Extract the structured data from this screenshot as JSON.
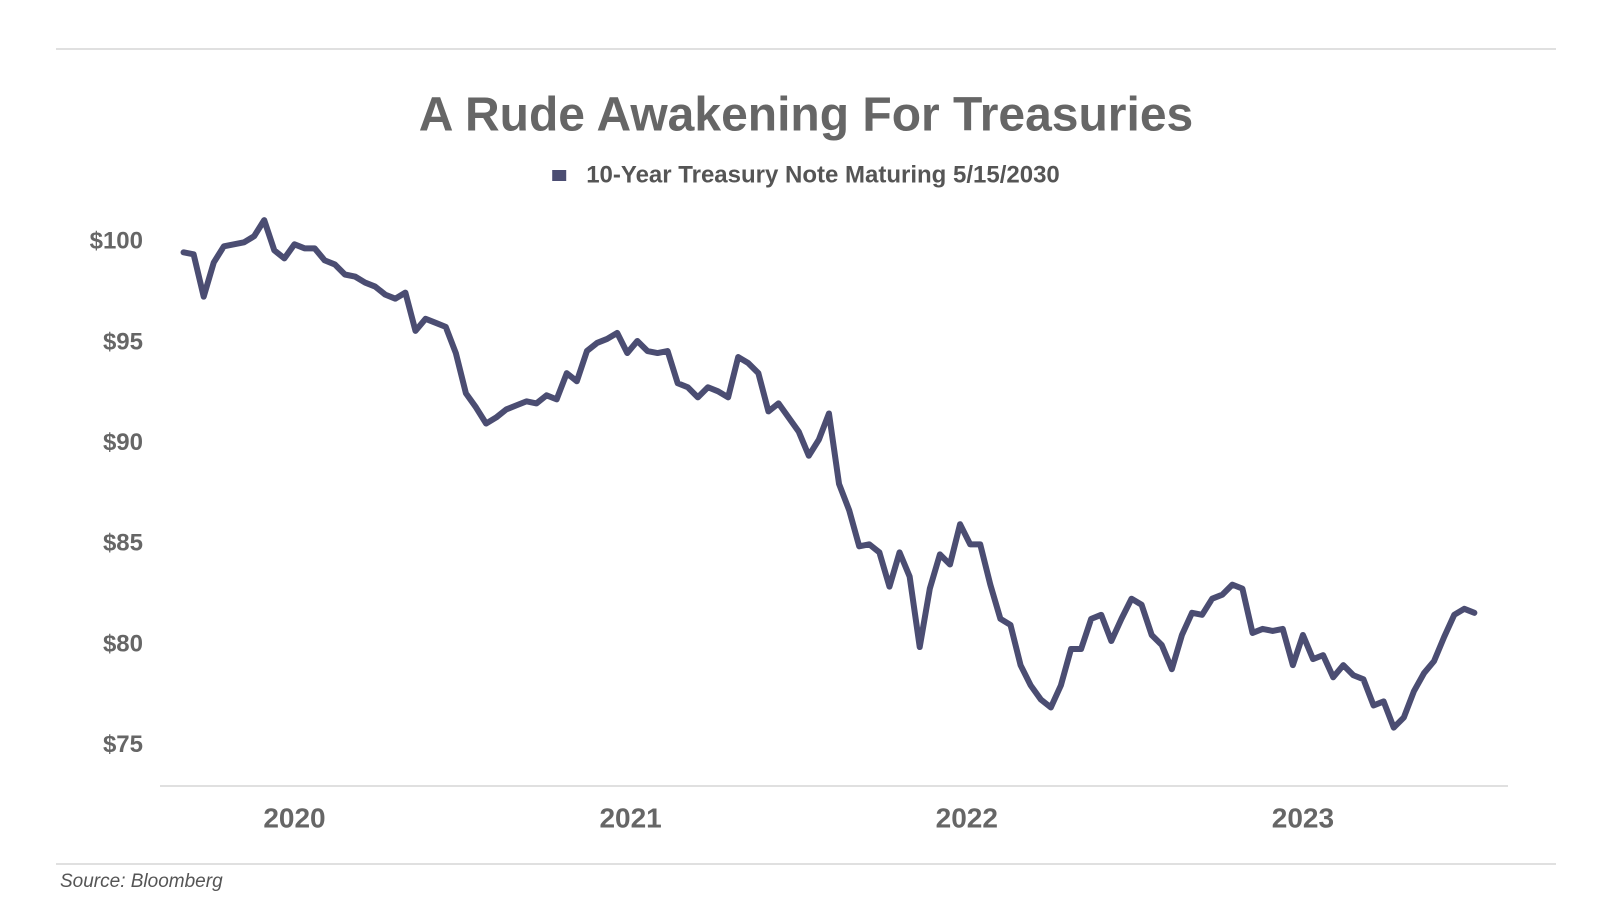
{
  "chart_data": {
    "type": "line",
    "title": "A Rude Awakening For Treasuries",
    "source": "Source: Bloomberg",
    "x": [
      2019.67,
      2019.7,
      2019.73,
      2019.76,
      2019.79,
      2019.82,
      2019.85,
      2019.88,
      2019.91,
      2019.94,
      2019.97,
      2020,
      2020.03,
      2020.06,
      2020.09,
      2020.12,
      2020.15,
      2020.18,
      2020.21,
      2020.24,
      2020.27,
      2020.3,
      2020.33,
      2020.36,
      2020.39,
      2020.42,
      2020.45,
      2020.48,
      2020.51,
      2020.54,
      2020.57,
      2020.6,
      2020.63,
      2020.66,
      2020.69,
      2020.72,
      2020.75,
      2020.78,
      2020.81,
      2020.84,
      2020.87,
      2020.9,
      2020.93,
      2020.96,
      2020.99,
      2021.02,
      2021.05,
      2021.08,
      2021.11,
      2021.14,
      2021.17,
      2021.2,
      2021.23,
      2021.26,
      2021.29,
      2021.32,
      2021.35,
      2021.38,
      2021.41,
      2021.44,
      2021.47,
      2021.5,
      2021.53,
      2021.56,
      2021.59,
      2021.62,
      2021.65,
      2021.68,
      2021.71,
      2021.74,
      2021.77,
      2021.8,
      2021.83,
      2021.86,
      2021.89,
      2021.92,
      2021.95,
      2021.98,
      2022.01,
      2022.04,
      2022.07,
      2022.1,
      2022.13,
      2022.16,
      2022.19,
      2022.22,
      2022.25,
      2022.28,
      2022.31,
      2022.34,
      2022.37,
      2022.4,
      2022.43,
      2022.46,
      2022.49,
      2022.52,
      2022.55,
      2022.58,
      2022.61,
      2022.64,
      2022.67,
      2022.7,
      2022.73,
      2022.76,
      2022.79,
      2022.82,
      2022.85,
      2022.88,
      2022.91,
      2022.94,
      2022.97,
      2023,
      2023.03,
      2023.06,
      2023.09,
      2023.12,
      2023.15,
      2023.18,
      2023.21,
      2023.24,
      2023.27,
      2023.3,
      2023.33,
      2023.36,
      2023.39,
      2023.42,
      2023.45,
      2023.48,
      2023.51
    ],
    "series": [
      {
        "name": "10-Year Treasury Note Maturing 5/15/2030",
        "color": "#4b4d72",
        "values": [
          99.5,
          99.4,
          97.3,
          99.0,
          99.8,
          99.9,
          100.0,
          100.3,
          101.1,
          99.6,
          99.2,
          99.9,
          99.7,
          99.7,
          99.1,
          98.9,
          98.4,
          98.3,
          98.0,
          97.8,
          97.4,
          97.2,
          97.5,
          95.6,
          96.2,
          96.0,
          95.8,
          94.5,
          92.5,
          91.8,
          91.0,
          91.3,
          91.7,
          91.9,
          92.1,
          92.0,
          92.4,
          92.2,
          93.5,
          93.1,
          94.6,
          95.0,
          95.2,
          95.5,
          94.5,
          95.1,
          94.6,
          94.5,
          94.6,
          93.0,
          92.8,
          92.3,
          92.8,
          92.6,
          92.3,
          94.3,
          94.0,
          93.5,
          91.6,
          92.0,
          91.3,
          90.6,
          89.4,
          90.2,
          91.5,
          88.0,
          86.7,
          84.9,
          85.0,
          84.6,
          82.9,
          84.6,
          83.4,
          79.9,
          82.8,
          84.5,
          84.0,
          86.0,
          85.0,
          85.0,
          83.0,
          81.3,
          81.0,
          79.0,
          78.0,
          77.3,
          76.9,
          78.0,
          79.8,
          79.8,
          81.3,
          81.5,
          80.2,
          81.3,
          82.3,
          82.0,
          80.5,
          80.0,
          78.8,
          80.5,
          81.6,
          81.5,
          82.3,
          82.5,
          83.0,
          82.8,
          80.6,
          80.8,
          80.7,
          80.8,
          79.0,
          80.5,
          79.3,
          79.5,
          78.4,
          79.0,
          78.5,
          78.3,
          77.0,
          77.2,
          75.9,
          76.4,
          77.7,
          78.6,
          79.2,
          80.4,
          81.5,
          81.8,
          81.6
        ]
      }
    ],
    "xlim": [
      2019.6,
      2023.61
    ],
    "xticks": [
      2020,
      2021,
      2022,
      2023
    ],
    "ylim": [
      73,
      102
    ],
    "yticks": [
      {
        "value": 75,
        "label": "$75"
      },
      {
        "value": 80,
        "label": "$80"
      },
      {
        "value": 85,
        "label": "$85"
      },
      {
        "value": 90,
        "label": "$90"
      },
      {
        "value": 95,
        "label": "$95"
      },
      {
        "value": 100,
        "label": "$100"
      }
    ],
    "grid": false
  }
}
